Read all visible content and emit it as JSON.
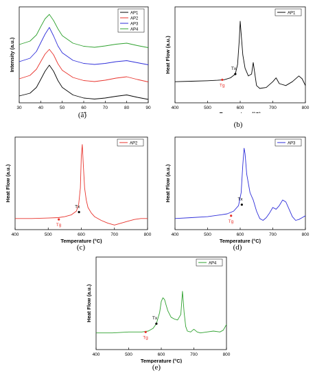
{
  "figure": {
    "panels": [
      {
        "id": "a",
        "caption": "(a)",
        "chart_data": {
          "type": "line",
          "xlabel": "2θ",
          "ylabel": "Intensity (a.u.)",
          "xlim": [
            30,
            90
          ],
          "x_ticks": [
            "30",
            "40",
            "50",
            "60",
            "70",
            "80",
            "90"
          ],
          "y_ticks": [],
          "legend_position": "top-right",
          "series": [
            {
              "name": "AP1",
              "color": "#000000",
              "offset": 0,
              "x": [
                30,
                35,
                38,
                40,
                42,
                44,
                46,
                48,
                50,
                55,
                60,
                65,
                70,
                75,
                80,
                85,
                90
              ],
              "y": [
                0.3,
                0.38,
                0.55,
                0.78,
                1.02,
                1.2,
                1.02,
                0.75,
                0.55,
                0.33,
                0.24,
                0.21,
                0.24,
                0.29,
                0.33,
                0.26,
                0.2
              ]
            },
            {
              "name": "AP2",
              "color": "#e8312a",
              "offset": 1,
              "x": [
                30,
                35,
                38,
                40,
                42,
                44,
                46,
                48,
                50,
                55,
                60,
                65,
                70,
                75,
                80,
                85,
                90
              ],
              "y": [
                0.3,
                0.4,
                0.58,
                0.8,
                1.02,
                1.16,
                1.0,
                0.74,
                0.55,
                0.34,
                0.25,
                0.22,
                0.26,
                0.32,
                0.36,
                0.28,
                0.21
              ]
            },
            {
              "name": "AP3",
              "color": "#2b2bd9",
              "offset": 2,
              "x": [
                30,
                35,
                38,
                40,
                42,
                44,
                46,
                48,
                50,
                55,
                60,
                65,
                70,
                75,
                80,
                85,
                90
              ],
              "y": [
                0.3,
                0.4,
                0.6,
                0.85,
                1.1,
                1.3,
                1.05,
                0.76,
                0.56,
                0.34,
                0.25,
                0.22,
                0.25,
                0.3,
                0.33,
                0.27,
                0.21
              ]
            },
            {
              "name": "AP4",
              "color": "#2ca02c",
              "offset": 3,
              "x": [
                30,
                35,
                38,
                40,
                42,
                44,
                46,
                48,
                50,
                55,
                60,
                65,
                70,
                75,
                80,
                85,
                90
              ],
              "y": [
                0.3,
                0.4,
                0.58,
                0.82,
                1.05,
                1.18,
                1.0,
                0.76,
                0.56,
                0.34,
                0.25,
                0.22,
                0.26,
                0.31,
                0.34,
                0.27,
                0.21
              ]
            }
          ]
        }
      },
      {
        "id": "b",
        "caption": "(b)",
        "chart_data": {
          "type": "line",
          "xlabel": "Temperature (°C)",
          "ylabel": "Heat Flow (a.u.)",
          "xlim": [
            400,
            800
          ],
          "ylim": [
            0,
            1
          ],
          "x_ticks": [
            "400",
            "500",
            "600",
            "700",
            "800"
          ],
          "legend_position": "top-right",
          "series": [
            {
              "name": "AP1",
              "color": "#000000",
              "x": [
                400,
                450,
                500,
                530,
                550,
                570,
                585,
                592,
                597,
                600,
                603,
                608,
                615,
                625,
                635,
                640,
                645,
                650,
                660,
                680,
                700,
                710,
                720,
                740,
                760,
                780,
                790,
                800
              ],
              "y": [
                0.22,
                0.225,
                0.23,
                0.235,
                0.24,
                0.26,
                0.3,
                0.4,
                0.65,
                0.85,
                0.72,
                0.5,
                0.36,
                0.28,
                0.3,
                0.42,
                0.3,
                0.18,
                0.15,
                0.16,
                0.22,
                0.26,
                0.2,
                0.18,
                0.22,
                0.28,
                0.25,
                0.18
              ]
            }
          ],
          "annotations": [
            {
              "text": "Tx",
              "x": 585,
              "y": 0.3,
              "color": "#000000"
            },
            {
              "text": "Tg",
              "x": 545,
              "y": 0.24,
              "color": "#e8312a"
            }
          ]
        }
      },
      {
        "id": "c",
        "caption": "(c)",
        "chart_data": {
          "type": "line",
          "xlabel": "Temperature (°C)",
          "ylabel": "Heat Flow (a.u.)",
          "xlim": [
            400,
            800
          ],
          "ylim": [
            0,
            1
          ],
          "x_ticks": [
            "400",
            "500",
            "600",
            "700",
            "800"
          ],
          "legend_position": "top-right",
          "series": [
            {
              "name": "AP2",
              "color": "#e8312a",
              "x": [
                400,
                450,
                500,
                530,
                550,
                570,
                585,
                592,
                597,
                600,
                603,
                606,
                610,
                615,
                620,
                630,
                640,
                660,
                680,
                700,
                720,
                740,
                760,
                780,
                800
              ],
              "y": [
                0.12,
                0.12,
                0.125,
                0.13,
                0.14,
                0.16,
                0.2,
                0.27,
                0.45,
                0.8,
                0.92,
                0.7,
                0.45,
                0.32,
                0.24,
                0.18,
                0.14,
                0.1,
                0.07,
                0.05,
                0.07,
                0.09,
                0.11,
                0.12,
                0.12
              ]
            }
          ],
          "annotations": [
            {
              "text": "Tx",
              "x": 593,
              "y": 0.19,
              "color": "#000000"
            },
            {
              "text": "Tg",
              "x": 532,
              "y": 0.11,
              "color": "#e8312a"
            }
          ]
        }
      },
      {
        "id": "d",
        "caption": "(d)",
        "chart_data": {
          "type": "line",
          "xlabel": "Temperature (°C)",
          "ylabel": "Heat Flow (a.u.)",
          "xlim": [
            400,
            800
          ],
          "ylim": [
            0,
            1
          ],
          "x_ticks": [
            "400",
            "500",
            "600",
            "700",
            "800"
          ],
          "legend_position": "top-right",
          "series": [
            {
              "name": "AP3",
              "color": "#2b2bd9",
              "x": [
                400,
                450,
                500,
                540,
                560,
                580,
                595,
                603,
                608,
                612,
                615,
                620,
                630,
                640,
                650,
                660,
                670,
                680,
                690,
                700,
                710,
                720,
                730,
                740,
                750,
                760,
                770,
                780,
                790,
                800
              ],
              "y": [
                0.12,
                0.13,
                0.14,
                0.16,
                0.17,
                0.2,
                0.26,
                0.4,
                0.7,
                0.88,
                0.82,
                0.6,
                0.4,
                0.32,
                0.2,
                0.12,
                0.1,
                0.13,
                0.18,
                0.24,
                0.22,
                0.26,
                0.32,
                0.3,
                0.22,
                0.14,
                0.1,
                0.11,
                0.13,
                0.15
              ]
            }
          ],
          "annotations": [
            {
              "text": "Tx",
              "x": 605,
              "y": 0.27,
              "color": "#000000"
            },
            {
              "text": "Tg",
              "x": 572,
              "y": 0.15,
              "color": "#e8312a"
            }
          ]
        }
      },
      {
        "id": "e",
        "caption": "(e)",
        "chart_data": {
          "type": "line",
          "xlabel": "Temperature (°C)",
          "ylabel": "Heat Flow (a.u.)",
          "xlim": [
            400,
            800
          ],
          "ylim": [
            0,
            1
          ],
          "x_ticks": [
            "400",
            "500",
            "600",
            "700",
            "800"
          ],
          "legend_position": "top-right",
          "series": [
            {
              "name": "AP4",
              "color": "#2ca02c",
              "x": [
                400,
                450,
                500,
                540,
                560,
                575,
                585,
                595,
                600,
                605,
                610,
                615,
                620,
                630,
                640,
                650,
                660,
                665,
                670,
                675,
                680,
                690,
                700,
                710,
                720,
                740,
                760,
                780,
                790,
                800
              ],
              "y": [
                0.18,
                0.18,
                0.19,
                0.19,
                0.2,
                0.23,
                0.28,
                0.4,
                0.52,
                0.56,
                0.54,
                0.48,
                0.42,
                0.35,
                0.33,
                0.32,
                0.38,
                0.63,
                0.4,
                0.25,
                0.2,
                0.19,
                0.22,
                0.19,
                0.18,
                0.19,
                0.2,
                0.19,
                0.21,
                0.27
              ]
            }
          ],
          "annotations": [
            {
              "text": "Tx",
              "x": 585,
              "y": 0.28,
              "color": "#000000"
            },
            {
              "text": "Tg",
              "x": 552,
              "y": 0.19,
              "color": "#e8312a"
            }
          ]
        }
      }
    ]
  }
}
